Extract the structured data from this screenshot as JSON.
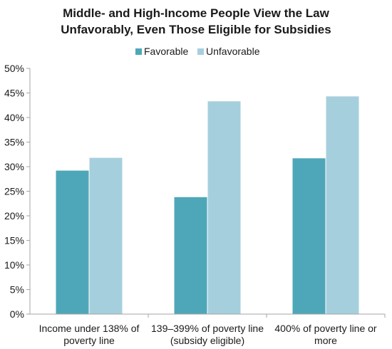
{
  "chart_data": {
    "type": "bar",
    "title": "Middle- and High-Income People View the Law Unfavorably, Even Those Eligible for Subsidies",
    "title_lines": [
      "Middle- and High-Income People View the Law",
      "Unfavorably, Even Those Eligible for Subsidies"
    ],
    "categories": [
      "Income under 138% of poverty line",
      "139–399% of poverty line (subsidy eligible)",
      "400% of poverty line or more"
    ],
    "category_lines": [
      [
        "Income under 138% of",
        "poverty line"
      ],
      [
        "139–399% of poverty line",
        "(subsidy eligible)"
      ],
      [
        "400% of poverty line or",
        "more"
      ]
    ],
    "series": [
      {
        "name": "Favorable",
        "values": [
          29.2,
          23.8,
          31.7
        ],
        "color": "#4ea7b8"
      },
      {
        "name": "Unfavorable",
        "values": [
          31.8,
          43.3,
          44.3
        ],
        "color": "#a6cfdd"
      }
    ],
    "ylim": [
      0,
      50
    ],
    "yticks": [
      "0%",
      "5%",
      "10%",
      "15%",
      "20%",
      "25%",
      "30%",
      "35%",
      "40%",
      "45%",
      "50%"
    ],
    "xlabel": "",
    "ylabel": "",
    "grid": false,
    "legend_position": "top-center"
  }
}
